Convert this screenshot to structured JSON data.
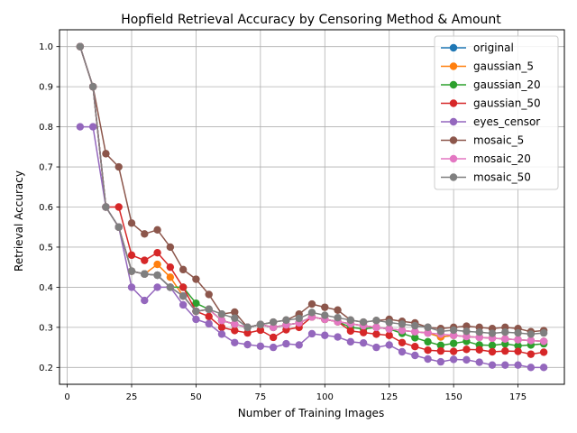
{
  "chart_data": {
    "type": "line",
    "title": "Hopfield Retrieval Accuracy by Censoring Method & Amount",
    "xlabel": "Number of Training Images",
    "ylabel": "Retrieval Accuracy",
    "xlim": [
      -3,
      193
    ],
    "ylim": [
      0.158,
      1.042
    ],
    "xticks": [
      0,
      25,
      50,
      75,
      100,
      125,
      150,
      175
    ],
    "yticks": [
      0.2,
      0.3,
      0.4,
      0.5,
      0.6,
      0.7,
      0.8,
      0.9,
      1.0
    ],
    "grid": true,
    "legend_position": "top-right",
    "x": [
      5,
      10,
      15,
      20,
      25,
      30,
      35,
      40,
      45,
      50,
      55,
      60,
      65,
      70,
      75,
      80,
      85,
      90,
      95,
      100,
      105,
      110,
      115,
      120,
      125,
      130,
      135,
      140,
      145,
      150,
      155,
      160,
      165,
      170,
      175,
      180,
      185
    ],
    "series": [
      {
        "name": "original",
        "color": "#1f77b4",
        "values": [
          1.0,
          0.9,
          0.6,
          0.55,
          0.44,
          0.433,
          0.43,
          0.4,
          0.378,
          0.34,
          0.345,
          0.317,
          0.308,
          0.3,
          0.307,
          0.3,
          0.306,
          0.311,
          0.326,
          0.32,
          0.314,
          0.309,
          0.304,
          0.3,
          0.296,
          0.292,
          0.289,
          0.286,
          0.276,
          0.28,
          0.277,
          0.275,
          0.273,
          0.271,
          0.269,
          0.267,
          0.265
        ]
      },
      {
        "name": "gaussian_5",
        "color": "#ff7f0e",
        "values": [
          1.0,
          0.9,
          0.6,
          0.55,
          0.44,
          0.433,
          0.457,
          0.425,
          0.378,
          0.34,
          0.345,
          0.317,
          0.308,
          0.3,
          0.307,
          0.3,
          0.306,
          0.311,
          0.326,
          0.32,
          0.314,
          0.309,
          0.304,
          0.3,
          0.296,
          0.292,
          0.289,
          0.286,
          0.276,
          0.28,
          0.277,
          0.275,
          0.273,
          0.271,
          0.269,
          0.267,
          0.265
        ]
      },
      {
        "name": "gaussian_20",
        "color": "#2ca02c",
        "values": [
          1.0,
          0.9,
          0.6,
          0.55,
          0.44,
          0.433,
          0.43,
          0.4,
          0.4,
          0.36,
          0.345,
          0.317,
          0.308,
          0.3,
          0.307,
          0.3,
          0.306,
          0.311,
          0.326,
          0.32,
          0.314,
          0.3,
          0.296,
          0.3,
          0.296,
          0.285,
          0.274,
          0.264,
          0.255,
          0.26,
          0.265,
          0.256,
          0.255,
          0.259,
          0.254,
          0.256,
          0.259
        ]
      },
      {
        "name": "gaussian_50",
        "color": "#d62728",
        "values": [
          1.0,
          0.9,
          0.6,
          0.6,
          0.48,
          0.467,
          0.486,
          0.45,
          0.4,
          0.34,
          0.327,
          0.3,
          0.292,
          0.286,
          0.293,
          0.275,
          0.294,
          0.3,
          0.326,
          0.32,
          0.314,
          0.291,
          0.287,
          0.283,
          0.28,
          0.262,
          0.252,
          0.243,
          0.241,
          0.24,
          0.245,
          0.244,
          0.239,
          0.241,
          0.24,
          0.233,
          0.238
        ]
      },
      {
        "name": "eyes_censor",
        "color": "#9467bd",
        "values": [
          0.8,
          0.8,
          0.6,
          0.55,
          0.4,
          0.367,
          0.4,
          0.4,
          0.356,
          0.32,
          0.309,
          0.283,
          0.262,
          0.257,
          0.253,
          0.25,
          0.259,
          0.256,
          0.284,
          0.28,
          0.276,
          0.264,
          0.261,
          0.25,
          0.256,
          0.239,
          0.23,
          0.221,
          0.214,
          0.22,
          0.219,
          0.213,
          0.206,
          0.206,
          0.206,
          0.2,
          0.2
        ]
      },
      {
        "name": "mosaic_5",
        "color": "#8c564b",
        "values": [
          1.0,
          0.9,
          0.733,
          0.7,
          0.56,
          0.533,
          0.543,
          0.5,
          0.444,
          0.42,
          0.382,
          0.333,
          0.338,
          0.3,
          0.307,
          0.313,
          0.318,
          0.333,
          0.358,
          0.35,
          0.343,
          0.318,
          0.313,
          0.317,
          0.32,
          0.315,
          0.311,
          0.3,
          0.297,
          0.3,
          0.303,
          0.3,
          0.297,
          0.3,
          0.297,
          0.289,
          0.292
        ]
      },
      {
        "name": "mosaic_20",
        "color": "#e377c2",
        "values": [
          1.0,
          0.9,
          0.6,
          0.55,
          0.44,
          0.433,
          0.43,
          0.4,
          0.378,
          0.34,
          0.345,
          0.317,
          0.308,
          0.3,
          0.307,
          0.3,
          0.306,
          0.311,
          0.326,
          0.32,
          0.314,
          0.309,
          0.304,
          0.3,
          0.296,
          0.292,
          0.289,
          0.286,
          0.283,
          0.28,
          0.277,
          0.275,
          0.273,
          0.271,
          0.269,
          0.267,
          0.265
        ]
      },
      {
        "name": "mosaic_50",
        "color": "#7f7f7f",
        "values": [
          1.0,
          0.9,
          0.6,
          0.55,
          0.44,
          0.433,
          0.43,
          0.4,
          0.378,
          0.34,
          0.345,
          0.333,
          0.323,
          0.3,
          0.307,
          0.313,
          0.318,
          0.322,
          0.337,
          0.33,
          0.324,
          0.318,
          0.313,
          0.317,
          0.312,
          0.308,
          0.304,
          0.3,
          0.29,
          0.293,
          0.29,
          0.288,
          0.285,
          0.288,
          0.286,
          0.283,
          0.286
        ]
      }
    ]
  }
}
